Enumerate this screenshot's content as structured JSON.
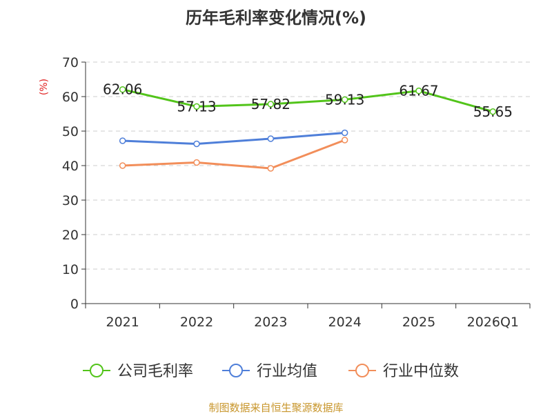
{
  "chart_data": {
    "type": "line",
    "title": "历年毛利率变化情况(%)",
    "ylabel": "(%)",
    "xlabel": "",
    "ylim": [
      0,
      70
    ],
    "yticks": [
      0,
      10,
      20,
      30,
      40,
      50,
      60,
      70
    ],
    "categories": [
      "2021",
      "2022",
      "2023",
      "2024",
      "2025",
      "2026Q1"
    ],
    "grid": true,
    "legend_position": "bottom",
    "series": [
      {
        "name": "公司毛利率",
        "color": "#52c41a",
        "values": [
          62.06,
          57.13,
          57.82,
          59.13,
          61.67,
          55.65
        ],
        "labels": [
          "62.06",
          "57.13",
          "57.82",
          "59.13",
          "61.67",
          "55.65"
        ]
      },
      {
        "name": "行业均值",
        "color": "#4f7fd9",
        "values": [
          47.2,
          46.3,
          47.8,
          49.5,
          null,
          null
        ],
        "labels": []
      },
      {
        "name": "行业中位数",
        "color": "#f28e5a",
        "values": [
          40.0,
          40.9,
          39.2,
          47.4,
          null,
          null
        ],
        "labels": []
      }
    ]
  },
  "source": "制图数据来自恒生聚源数据库"
}
